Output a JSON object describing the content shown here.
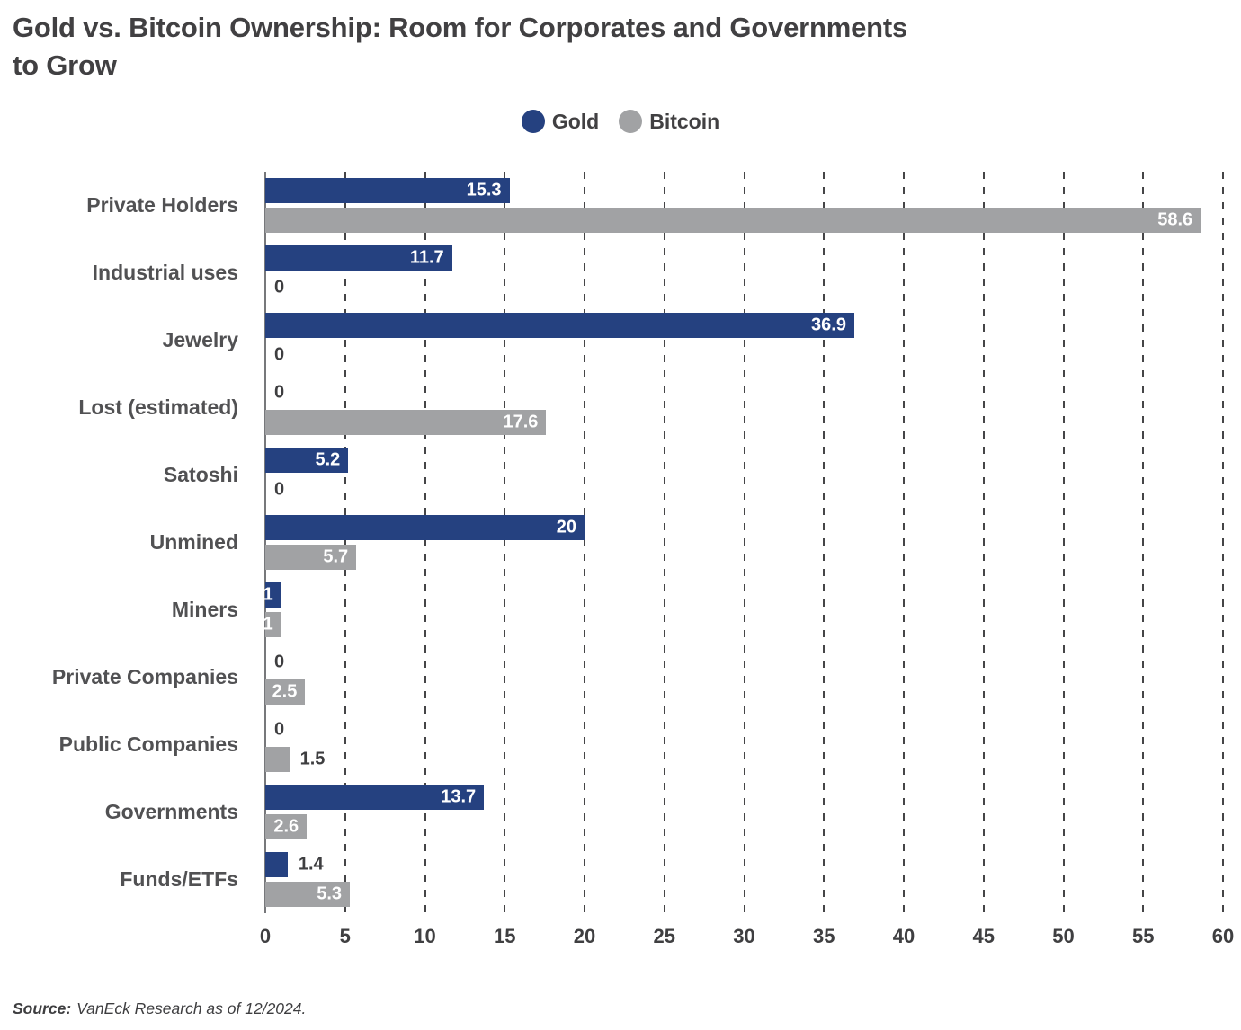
{
  "header": {
    "title_line1": "Gold vs. Bitcoin Ownership: Room for Corporates and Governments",
    "title_line2": "to Grow"
  },
  "legend": {
    "items": [
      {
        "label": "Gold",
        "color": "#254180"
      },
      {
        "label": "Bitcoin",
        "color": "#a1a2a4"
      }
    ]
  },
  "source": {
    "label": "Source:",
    "text": "VanEck Research as of 12/2024."
  },
  "colors": {
    "gold": "#254180",
    "bitcoin": "#a1a2a4",
    "grid": "#454547",
    "axis": "#77787b",
    "text_dark": "#414042",
    "value_inside": "#ffffff",
    "value_outside": "#3e3e40"
  },
  "chart_data": {
    "type": "bar",
    "orientation": "horizontal",
    "title": "Gold vs. Bitcoin Ownership: Room for Corporates and Governments to Grow",
    "categories": [
      "Private Holders",
      "Industrial uses",
      "Jewelry",
      "Lost (estimated)",
      "Satoshi",
      "Unmined",
      "Miners",
      "Private Companies",
      "Public Companies",
      "Governments",
      "Funds/ETFs"
    ],
    "series": [
      {
        "name": "Gold",
        "color": "#254180",
        "values": [
          15.3,
          11.7,
          36.9,
          0,
          5.2,
          20,
          1,
          0,
          0,
          13.7,
          1.4
        ]
      },
      {
        "name": "Bitcoin",
        "color": "#a1a2a4",
        "values": [
          58.6,
          0,
          0,
          17.6,
          0,
          5.7,
          1,
          2.5,
          1.5,
          2.6,
          5.3
        ]
      }
    ],
    "xlim": [
      0,
      60
    ],
    "xticks": [
      0,
      5,
      10,
      15,
      20,
      25,
      30,
      35,
      40,
      45,
      50,
      55,
      60
    ],
    "grid": "vertical-dashed",
    "legend_position": "top-center",
    "value_labels": true,
    "source_note": "Source: VanEck Research as of 12/2024."
  }
}
